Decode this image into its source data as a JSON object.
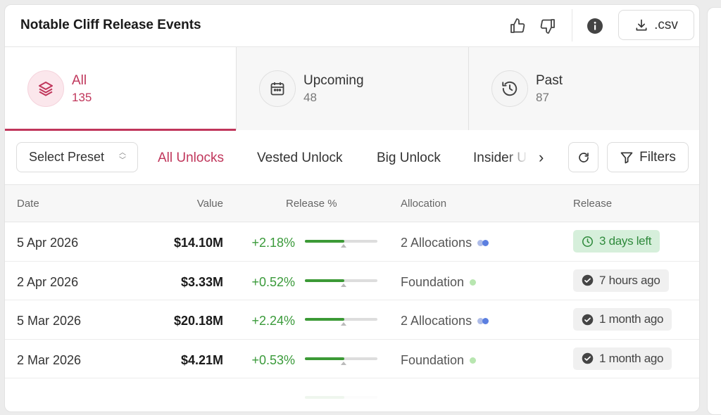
{
  "header": {
    "title": "Notable Cliff Release Events",
    "csv_label": ".csv"
  },
  "tabs": [
    {
      "label": "All",
      "count": "135",
      "icon": "layers-icon",
      "active": true
    },
    {
      "label": "Upcoming",
      "count": "48",
      "icon": "calendar-icon",
      "active": false
    },
    {
      "label": "Past",
      "count": "87",
      "icon": "history-icon",
      "active": false
    }
  ],
  "filters": {
    "preset_label": "Select Preset",
    "chips": [
      "All Unlocks",
      "Vested Unlock",
      "Big Unlock",
      "Insider U"
    ],
    "active_chip": "All Unlocks",
    "filters_label": "Filters"
  },
  "table": {
    "columns": [
      "Date",
      "Value",
      "Release %",
      "Allocation",
      "Release"
    ],
    "rows": [
      {
        "date": "5 Apr 2026",
        "value": "$14.10M",
        "pct": "+2.18%",
        "bar_fill": 0.54,
        "allocation": "2 Allocations",
        "alloc_type": "multi",
        "release": "3 days left",
        "release_type": "future"
      },
      {
        "date": "2 Apr 2026",
        "value": "$3.33M",
        "pct": "+0.52%",
        "bar_fill": 0.54,
        "allocation": "Foundation",
        "alloc_type": "single",
        "release": "7 hours ago",
        "release_type": "past"
      },
      {
        "date": "5 Mar 2026",
        "value": "$20.18M",
        "pct": "+2.24%",
        "bar_fill": 0.54,
        "allocation": "2 Allocations",
        "alloc_type": "multi",
        "release": "1 month ago",
        "release_type": "past"
      },
      {
        "date": "2 Mar 2026",
        "value": "$4.21M",
        "pct": "+0.53%",
        "bar_fill": 0.54,
        "allocation": "Foundation",
        "alloc_type": "single",
        "release": "1 month ago",
        "release_type": "past"
      }
    ]
  },
  "colors": {
    "accent": "#c0365b",
    "positive": "#3a9a3a",
    "foundation_dot": "#b8e6b0",
    "future_badge_bg": "#d6efdb"
  }
}
